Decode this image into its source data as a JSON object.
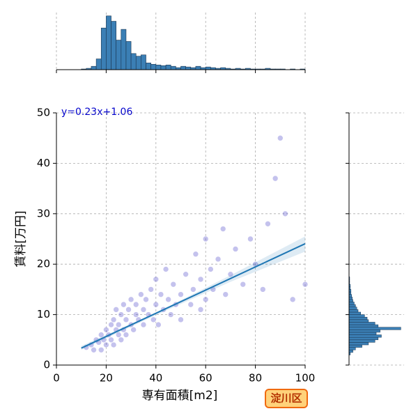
{
  "badge": "淀川区",
  "chart_data": [
    {
      "type": "scatter",
      "x_label": "専有面積[m2]",
      "y_label": "賃料[万円]",
      "annotation": "y=0.23x+1.06",
      "color": "#3a34c4",
      "grid": true,
      "xlim": [
        0,
        100
      ],
      "xticks": [
        0,
        20,
        40,
        60,
        80,
        100
      ],
      "ylim": [
        0,
        50
      ],
      "yticks": [
        0,
        10,
        20,
        30,
        40,
        50
      ],
      "x": [
        12,
        14,
        15,
        16,
        17,
        18,
        18,
        19,
        20,
        20,
        21,
        22,
        22,
        23,
        23,
        24,
        24,
        25,
        25,
        26,
        26,
        27,
        27,
        28,
        28,
        29,
        30,
        30,
        31,
        32,
        32,
        33,
        34,
        35,
        35,
        36,
        37,
        38,
        39,
        40,
        40,
        41,
        42,
        43,
        44,
        45,
        46,
        47,
        48,
        50,
        50,
        52,
        54,
        55,
        56,
        58,
        58,
        60,
        60,
        62,
        63,
        65,
        67,
        68,
        70,
        72,
        75,
        78,
        80,
        83,
        85,
        88,
        90,
        92,
        95,
        100
      ],
      "y": [
        3.5,
        4,
        3,
        5,
        4.5,
        6,
        3,
        5,
        7,
        4,
        6,
        8,
        5,
        9,
        4,
        7,
        11,
        6,
        8,
        10,
        5,
        7,
        12,
        9,
        6,
        11,
        8,
        13,
        7,
        10,
        12,
        9,
        14,
        8,
        11,
        13,
        10,
        15,
        9,
        12,
        17,
        8,
        14,
        11,
        19,
        13,
        10,
        16,
        12,
        14,
        9,
        18,
        12,
        15,
        22,
        11,
        17,
        25,
        13,
        19,
        15,
        21,
        27,
        14,
        18,
        23,
        16,
        25,
        20,
        15,
        28,
        37,
        45,
        30,
        13,
        16
      ],
      "regression": {
        "color": "#1f77b4",
        "x": [
          10,
          100
        ],
        "y": [
          3.36,
          24.06
        ],
        "ci_x": [
          10,
          40,
          70,
          100
        ],
        "ci_lower": [
          3.0,
          9.9,
          16.5,
          22.5
        ],
        "ci_upper": [
          3.8,
          10.4,
          17.8,
          25.5
        ]
      }
    },
    {
      "type": "histogram",
      "orientation": "vertical",
      "color": "#3b7fb5",
      "grid": true,
      "xlim": [
        0,
        100
      ],
      "xticks": [
        0,
        20,
        40,
        60,
        80,
        100
      ],
      "ylim": [
        0,
        85
      ],
      "bins": [
        10,
        12,
        14,
        16,
        18,
        20,
        22,
        24,
        26,
        28,
        30,
        32,
        34,
        36,
        38,
        40,
        42,
        44,
        46,
        48,
        50,
        52,
        54,
        56,
        58,
        60,
        62,
        64,
        66,
        68,
        70,
        72,
        74,
        76,
        78,
        80,
        82,
        84,
        86,
        88,
        90,
        92,
        94,
        96,
        98,
        100
      ],
      "values": [
        1,
        2,
        5,
        16,
        62,
        80,
        72,
        44,
        60,
        42,
        24,
        20,
        22,
        10,
        8,
        7,
        6,
        7,
        5,
        3,
        5,
        4,
        3,
        5,
        3,
        4,
        3,
        2,
        3,
        2,
        1,
        2,
        1,
        2,
        1,
        1,
        1,
        2,
        1,
        1,
        1,
        0,
        1,
        0,
        1
      ]
    },
    {
      "type": "histogram",
      "orientation": "horizontal",
      "color": "#3b7fb5",
      "grid": true,
      "ylim": [
        0,
        50
      ],
      "yticks": [
        0,
        10,
        20,
        30,
        40,
        50
      ],
      "xlim": [
        0,
        85
      ],
      "bins": [
        2,
        2.5,
        3,
        3.5,
        4,
        4.5,
        5,
        5.5,
        6,
        6.5,
        7,
        7.5,
        8,
        8.5,
        9,
        9.5,
        10,
        10.5,
        11,
        11.5,
        12,
        12.5,
        13,
        13.5,
        14,
        14.5,
        15,
        15.5,
        16,
        16.5,
        17,
        17.5
      ],
      "values": [
        2,
        6,
        10,
        20,
        30,
        40,
        45,
        50,
        42,
        48,
        80,
        45,
        40,
        30,
        28,
        24,
        18,
        14,
        12,
        10,
        8,
        6,
        5,
        4,
        3,
        3,
        2,
        2,
        1,
        1,
        1
      ]
    }
  ]
}
